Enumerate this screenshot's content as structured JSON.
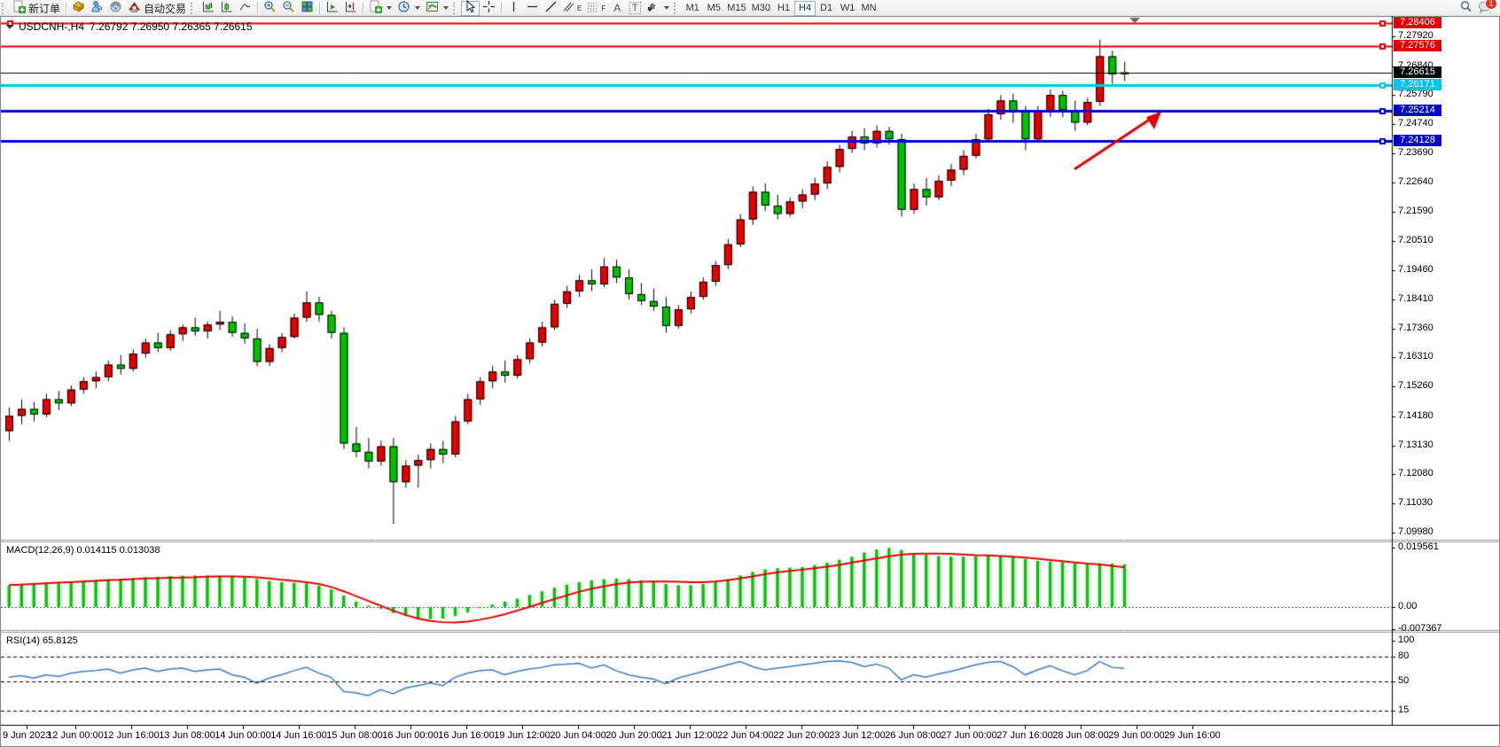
{
  "toolbar": {
    "new_order_label": "新订单",
    "autotrading_label": "自动交易",
    "channel_glyph": "E",
    "fibo_glyph": "F",
    "text_tool_glyph": "A",
    "label_tool_glyph": "T",
    "timeframes": [
      "M1",
      "M5",
      "M15",
      "M30",
      "H1",
      "H4",
      "D1",
      "W1",
      "MN"
    ],
    "active_timeframe": "H4",
    "notification_count": "1"
  },
  "chart": {
    "title": "USDCNH-,H4",
    "ohlc": "7.26792 7.26950 7.26365 7.26615",
    "up_color": "#e60000",
    "down_color": "#00c000",
    "wick_color": "#000000"
  },
  "price_axis": {
    "ticks": [
      "7.27920",
      "7.26840",
      "7.25790",
      "7.24740",
      "7.23690",
      "7.22640",
      "7.21590",
      "7.20510",
      "7.19460",
      "7.18410",
      "7.17360",
      "7.16310",
      "7.15260",
      "7.14180",
      "7.13130",
      "7.12080",
      "7.11030",
      "7.09980"
    ],
    "tick_values": [
      7.2792,
      7.2684,
      7.2579,
      7.2474,
      7.2369,
      7.2264,
      7.2159,
      7.2051,
      7.1946,
      7.1841,
      7.1736,
      7.1631,
      7.1526,
      7.1418,
      7.1313,
      7.1208,
      7.1103,
      7.0998
    ]
  },
  "levels": [
    {
      "label": "7.28406",
      "value": 7.28406,
      "color": "#df0000",
      "width": 2,
      "left_handle": true
    },
    {
      "label": "7.27576",
      "value": 7.27576,
      "color": "#df0000",
      "width": 2,
      "left_handle": false
    },
    {
      "label": "7.26171",
      "value": 7.26171,
      "color": "#00c4ea",
      "width": 3,
      "left_handle": false
    },
    {
      "label": "7.25214",
      "value": 7.25214,
      "color": "#0000cc",
      "width": 3,
      "left_handle": false
    },
    {
      "label": "7.24128",
      "value": 7.24128,
      "color": "#0000cc",
      "width": 3,
      "left_handle": false
    }
  ],
  "current_price": {
    "label": "7.26615",
    "value": 7.26615,
    "color": "#000000"
  },
  "macd": {
    "label": "MACD(12,26,9) 0.014115 0.013038",
    "axis_labels": [
      "0.019561",
      "0.00",
      "-0.007367"
    ],
    "hist_color": "#00c800",
    "signal_color": "#e00000"
  },
  "rsi": {
    "label": "RSI(14) 65.8125",
    "axis_labels": [
      "100",
      "80",
      "50",
      "15"
    ],
    "level_values": [
      80,
      50,
      15
    ],
    "line_color": "#3a7bbf"
  },
  "time_axis": {
    "labels": [
      "9 Jun 2023",
      "12 Jun 00:00",
      "12 Jun 16:00",
      "13 Jun 08:00",
      "14 Jun 00:00",
      "14 Jun 16:00",
      "15 Jun 08:00",
      "16 Jun 00:00",
      "16 Jun 16:00",
      "19 Jun 12:00",
      "20 Jun 04:00",
      "20 Jun 20:00",
      "21 Jun 12:00",
      "22 Jun 04:00",
      "22 Jun 20:00",
      "23 Jun 12:00",
      "26 Jun 08:00",
      "27 Jun 00:00",
      "27 Jun 16:00",
      "28 Jun 08:00",
      "29 Jun 00:00",
      "29 Jun 16:00"
    ]
  },
  "chart_data": [
    {
      "type": "candlestick",
      "symbol": "USDCNH-",
      "timeframe": "H4",
      "title": "USDCNH-,H4 7.26792 7.26950 7.26365 7.26615",
      "ylim": [
        7.0976,
        7.2866
      ],
      "up_color": "#e60000",
      "down_color": "#00c000",
      "candles": [
        [
          7.1365,
          7.145,
          7.133,
          7.142
        ],
        [
          7.142,
          7.148,
          7.139,
          7.1445
        ],
        [
          7.1445,
          7.147,
          7.14,
          7.1425
        ],
        [
          7.1425,
          7.15,
          7.1415,
          7.148
        ],
        [
          7.148,
          7.151,
          7.144,
          7.1465
        ],
        [
          7.1465,
          7.153,
          7.1455,
          7.1515
        ],
        [
          7.1515,
          7.156,
          7.15,
          7.1545
        ],
        [
          7.1545,
          7.158,
          7.152,
          7.156
        ],
        [
          7.156,
          7.162,
          7.1545,
          7.1605
        ],
        [
          7.1605,
          7.164,
          7.157,
          7.159
        ],
        [
          7.159,
          7.166,
          7.158,
          7.1645
        ],
        [
          7.1645,
          7.17,
          7.163,
          7.1685
        ],
        [
          7.1685,
          7.172,
          7.165,
          7.1665
        ],
        [
          7.1665,
          7.173,
          7.1655,
          7.1715
        ],
        [
          7.1715,
          7.175,
          7.169,
          7.174
        ],
        [
          7.174,
          7.1775,
          7.171,
          7.1725
        ],
        [
          7.1725,
          7.176,
          7.17,
          7.175
        ],
        [
          7.175,
          7.18,
          7.173,
          7.176
        ],
        [
          7.176,
          7.178,
          7.1705,
          7.172
        ],
        [
          7.172,
          7.1755,
          7.168,
          7.17
        ],
        [
          7.17,
          7.1735,
          7.16,
          7.1615
        ],
        [
          7.1615,
          7.168,
          7.16,
          7.1665
        ],
        [
          7.1665,
          7.172,
          7.165,
          7.1705
        ],
        [
          7.1705,
          7.179,
          7.17,
          7.1775
        ],
        [
          7.1775,
          7.187,
          7.176,
          7.183
        ],
        [
          7.183,
          7.185,
          7.176,
          7.1785
        ],
        [
          7.1785,
          7.18,
          7.17,
          7.172
        ],
        [
          7.172,
          7.174,
          7.13,
          7.132
        ],
        [
          7.132,
          7.138,
          7.127,
          7.129
        ],
        [
          7.129,
          7.134,
          7.123,
          7.1255
        ],
        [
          7.1255,
          7.133,
          7.124,
          7.131
        ],
        [
          7.131,
          7.134,
          7.103,
          7.118
        ],
        [
          7.118,
          7.126,
          7.116,
          7.124
        ],
        [
          7.124,
          7.128,
          7.116,
          7.126
        ],
        [
          7.126,
          7.132,
          7.123,
          7.13
        ],
        [
          7.13,
          7.133,
          7.125,
          7.128
        ],
        [
          7.128,
          7.142,
          7.127,
          7.14
        ],
        [
          7.14,
          7.15,
          7.139,
          7.148
        ],
        [
          7.148,
          7.156,
          7.146,
          7.1545
        ],
        [
          7.1545,
          7.16,
          7.152,
          7.158
        ],
        [
          7.158,
          7.162,
          7.154,
          7.1565
        ],
        [
          7.1565,
          7.164,
          7.1555,
          7.1625
        ],
        [
          7.1625,
          7.17,
          7.161,
          7.1685
        ],
        [
          7.1685,
          7.176,
          7.167,
          7.174
        ],
        [
          7.174,
          7.184,
          7.173,
          7.1825
        ],
        [
          7.1825,
          7.189,
          7.181,
          7.187
        ],
        [
          7.187,
          7.193,
          7.185,
          7.191
        ],
        [
          7.191,
          7.195,
          7.187,
          7.1895
        ],
        [
          7.1895,
          7.199,
          7.1885,
          7.196
        ],
        [
          7.196,
          7.1985,
          7.19,
          7.192
        ],
        [
          7.192,
          7.195,
          7.184,
          7.186
        ],
        [
          7.186,
          7.19,
          7.182,
          7.1835
        ],
        [
          7.1835,
          7.188,
          7.18,
          7.1815
        ],
        [
          7.1815,
          7.185,
          7.172,
          7.1745
        ],
        [
          7.1745,
          7.182,
          7.1735,
          7.1805
        ],
        [
          7.1805,
          7.187,
          7.179,
          7.185
        ],
        [
          7.185,
          7.192,
          7.184,
          7.1905
        ],
        [
          7.1905,
          7.198,
          7.189,
          7.1965
        ],
        [
          7.1965,
          7.206,
          7.195,
          7.204
        ],
        [
          7.204,
          7.215,
          7.203,
          7.213
        ],
        [
          7.213,
          7.225,
          7.211,
          7.223
        ],
        [
          7.223,
          7.226,
          7.216,
          7.218
        ],
        [
          7.218,
          7.222,
          7.213,
          7.215
        ],
        [
          7.215,
          7.221,
          7.214,
          7.2195
        ],
        [
          7.2195,
          7.224,
          7.217,
          7.222
        ],
        [
          7.222,
          7.228,
          7.22,
          7.226
        ],
        [
          7.226,
          7.234,
          7.224,
          7.232
        ],
        [
          7.232,
          7.24,
          7.23,
          7.2385
        ],
        [
          7.2385,
          7.245,
          7.237,
          7.243
        ],
        [
          7.243,
          7.246,
          7.238,
          7.2405
        ],
        [
          7.2405,
          7.247,
          7.239,
          7.245
        ],
        [
          7.245,
          7.2465,
          7.24,
          7.242
        ],
        [
          7.242,
          7.244,
          7.214,
          7.2165
        ],
        [
          7.2165,
          7.226,
          7.215,
          7.224
        ],
        [
          7.224,
          7.228,
          7.218,
          7.221
        ],
        [
          7.221,
          7.229,
          7.22,
          7.227
        ],
        [
          7.227,
          7.233,
          7.225,
          7.231
        ],
        [
          7.231,
          7.238,
          7.229,
          7.236
        ],
        [
          7.236,
          7.244,
          7.235,
          7.242
        ],
        [
          7.242,
          7.253,
          7.241,
          7.251
        ],
        [
          7.251,
          7.258,
          7.249,
          7.256
        ],
        [
          7.256,
          7.2585,
          7.248,
          7.252
        ],
        [
          7.252,
          7.254,
          7.238,
          7.242
        ],
        [
          7.242,
          7.254,
          7.241,
          7.252
        ],
        [
          7.252,
          7.26,
          7.25,
          7.258
        ],
        [
          7.258,
          7.2595,
          7.25,
          7.2525
        ],
        [
          7.2525,
          7.256,
          7.245,
          7.248
        ],
        [
          7.248,
          7.257,
          7.247,
          7.2555
        ],
        [
          7.2555,
          7.278,
          7.254,
          7.272
        ],
        [
          7.272,
          7.274,
          7.262,
          7.2655
        ],
        [
          7.2655,
          7.27,
          7.263,
          7.26615
        ]
      ]
    },
    {
      "type": "bar",
      "name": "MACD(12,26,9)",
      "values_label": "0.014115 0.013038",
      "ylim": [
        -0.007367,
        0.019561
      ],
      "histogram": [
        0.007,
        0.0074,
        0.0078,
        0.008,
        0.0082,
        0.0084,
        0.0086,
        0.0088,
        0.0091,
        0.0093,
        0.0095,
        0.0098,
        0.01,
        0.0102,
        0.0103,
        0.0104,
        0.0104,
        0.0103,
        0.0101,
        0.0098,
        0.0092,
        0.0086,
        0.0082,
        0.008,
        0.0078,
        0.007,
        0.0058,
        0.0038,
        0.0018,
        0.0004,
        -0.0006,
        -0.002,
        -0.003,
        -0.0038,
        -0.004,
        -0.0038,
        -0.003,
        -0.0018,
        -0.0004,
        0.0008,
        0.0018,
        0.0028,
        0.004,
        0.0052,
        0.0064,
        0.0074,
        0.0082,
        0.0088,
        0.0092,
        0.0094,
        0.0092,
        0.0088,
        0.0082,
        0.0076,
        0.0072,
        0.0072,
        0.0076,
        0.0082,
        0.0092,
        0.0104,
        0.0116,
        0.0124,
        0.0128,
        0.013,
        0.0132,
        0.0138,
        0.0146,
        0.0156,
        0.0166,
        0.018,
        0.019,
        0.0195,
        0.0188,
        0.0178,
        0.0172,
        0.0168,
        0.0166,
        0.0166,
        0.0168,
        0.017,
        0.017,
        0.0166,
        0.0158,
        0.0152,
        0.015,
        0.0148,
        0.0144,
        0.0142,
        0.0144,
        0.0143,
        0.014115
      ],
      "signal": [
        0.0072,
        0.0074,
        0.0076,
        0.0078,
        0.008,
        0.0082,
        0.0084,
        0.0086,
        0.0088,
        0.009,
        0.0092,
        0.0094,
        0.0095,
        0.0096,
        0.0097,
        0.0098,
        0.01,
        0.0101,
        0.0101,
        0.01,
        0.0098,
        0.0094,
        0.009,
        0.0086,
        0.0082,
        0.0076,
        0.0066,
        0.0052,
        0.0036,
        0.002,
        0.0004,
        -0.0012,
        -0.0026,
        -0.0038,
        -0.0046,
        -0.005,
        -0.0051,
        -0.0048,
        -0.0042,
        -0.0034,
        -0.0024,
        -0.0012,
        0.0,
        0.0013,
        0.0026,
        0.0038,
        0.005,
        0.006,
        0.0068,
        0.0075,
        0.008,
        0.0083,
        0.0084,
        0.0084,
        0.0083,
        0.0082,
        0.0082,
        0.0084,
        0.0088,
        0.0094,
        0.0101,
        0.0108,
        0.0114,
        0.0119,
        0.0123,
        0.0128,
        0.0133,
        0.0139,
        0.0146,
        0.0153,
        0.016,
        0.0167,
        0.0172,
        0.0175,
        0.0176,
        0.0176,
        0.0175,
        0.0173,
        0.0171,
        0.017,
        0.0168,
        0.0166,
        0.0163,
        0.0159,
        0.0155,
        0.0151,
        0.0147,
        0.0143,
        0.014,
        0.0136,
        0.013038
      ]
    },
    {
      "type": "line",
      "name": "RSI(14)",
      "current": 65.8125,
      "levels": [
        80,
        50,
        15
      ],
      "ylim": [
        0,
        100
      ],
      "values": [
        55,
        57,
        54,
        58,
        56,
        60,
        62,
        63,
        65,
        60,
        64,
        66,
        62,
        65,
        66,
        62,
        64,
        65,
        58,
        55,
        48,
        54,
        58,
        63,
        67,
        60,
        55,
        38,
        36,
        33,
        40,
        35,
        42,
        45,
        48,
        45,
        55,
        60,
        63,
        64,
        58,
        62,
        65,
        67,
        70,
        71,
        72,
        66,
        70,
        63,
        58,
        55,
        53,
        47,
        54,
        58,
        62,
        66,
        70,
        74,
        68,
        64,
        66,
        68,
        70,
        72,
        74,
        75,
        73,
        68,
        71,
        66,
        52,
        58,
        55,
        59,
        62,
        66,
        70,
        73,
        74,
        68,
        58,
        64,
        69,
        63,
        58,
        63,
        74,
        67,
        65.8125
      ]
    }
  ]
}
